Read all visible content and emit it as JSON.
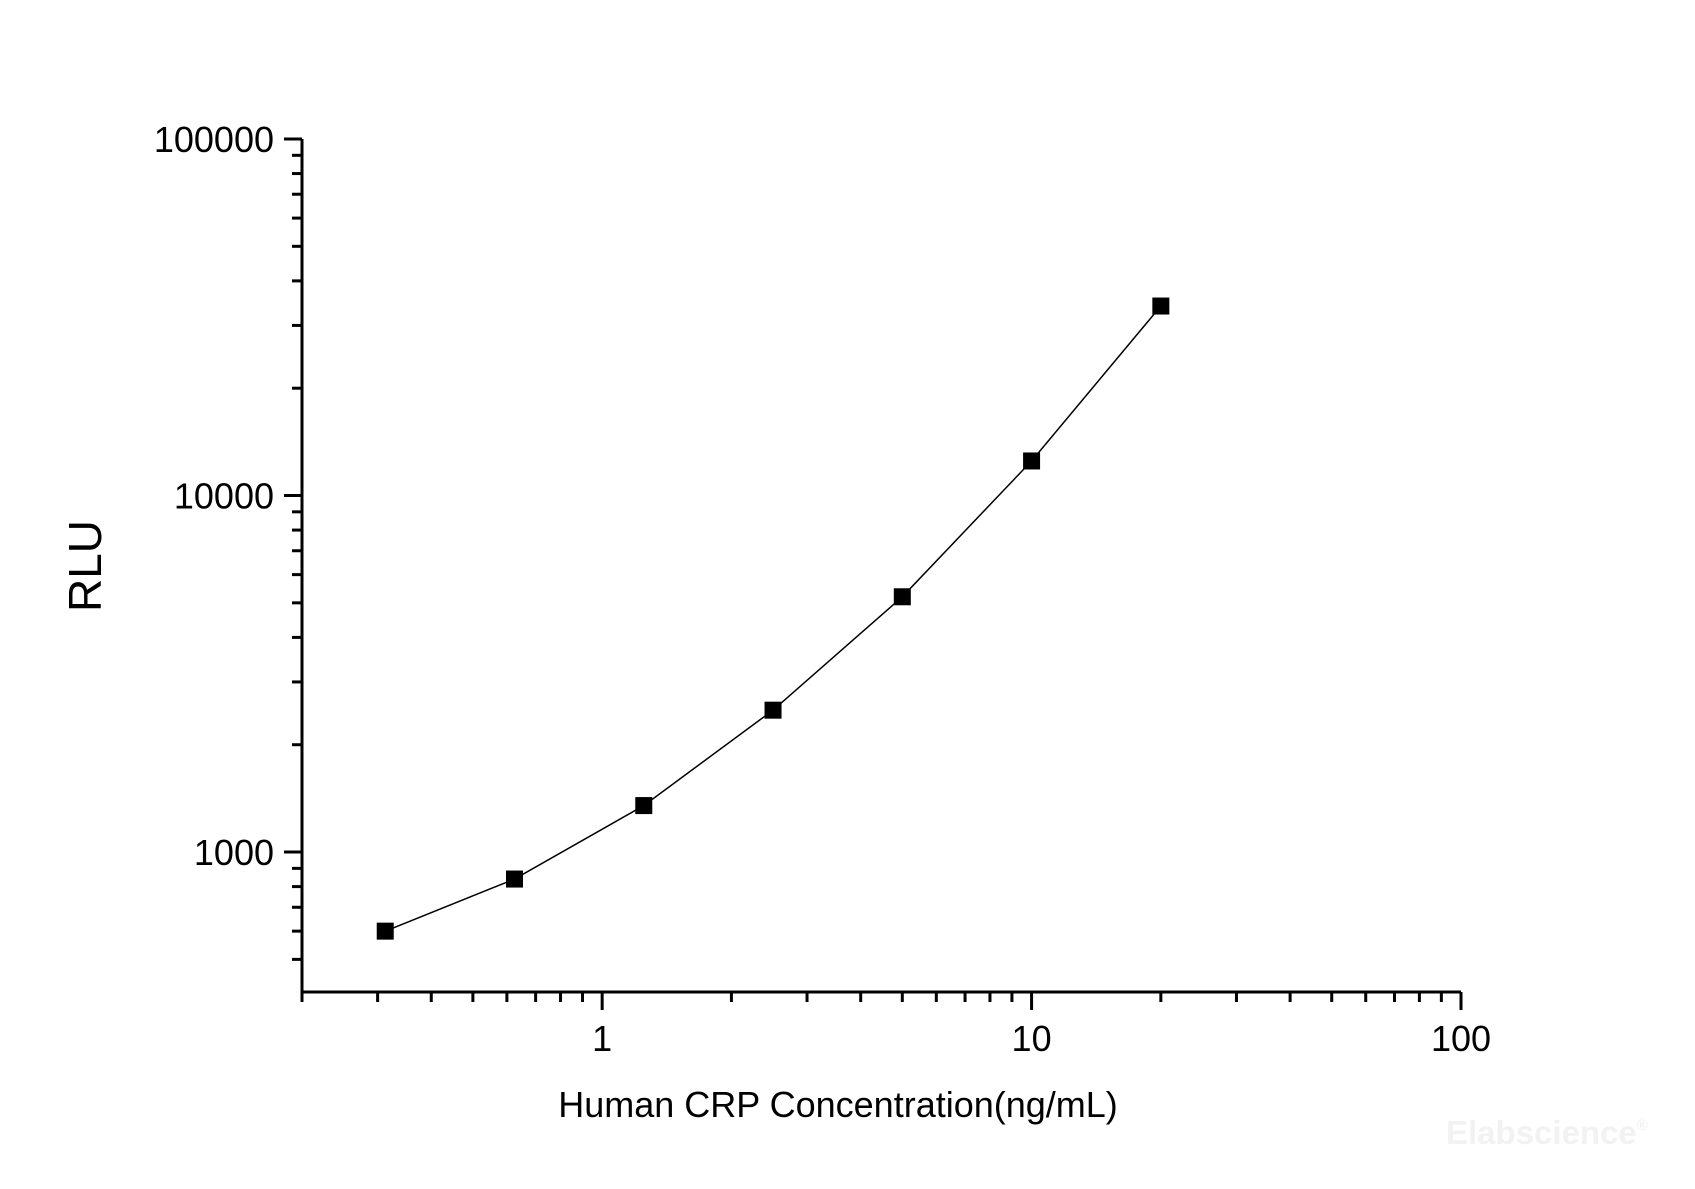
{
  "chart_data": {
    "type": "line",
    "title": "",
    "xlabel": "Human CRP Concentration(ng/mL)",
    "ylabel": "RLU",
    "x_scale": "log",
    "y_scale": "log",
    "xlim": [
      0.2,
      100
    ],
    "ylim": [
      405,
      100000
    ],
    "grid": false,
    "legend": "none",
    "x_major_ticks": {
      "values": [
        1,
        10,
        100
      ],
      "labels": [
        "1",
        "10",
        "100"
      ]
    },
    "y_major_ticks": {
      "values": [
        1000,
        10000,
        100000
      ],
      "labels": [
        "1000",
        "10000",
        "100000"
      ]
    },
    "series": [
      {
        "marker": "filled-square",
        "line_color": "#000000",
        "marker_color": "#000000",
        "points": [
          {
            "x": 0.3125,
            "y": 600
          },
          {
            "x": 0.625,
            "y": 840
          },
          {
            "x": 1.25,
            "y": 1350
          },
          {
            "x": 2.5,
            "y": 2500
          },
          {
            "x": 5,
            "y": 5200
          },
          {
            "x": 10,
            "y": 12500
          },
          {
            "x": 20,
            "y": 34000
          }
        ]
      }
    ]
  },
  "watermark": {
    "text": "Elabscience",
    "registered_mark": "®"
  }
}
